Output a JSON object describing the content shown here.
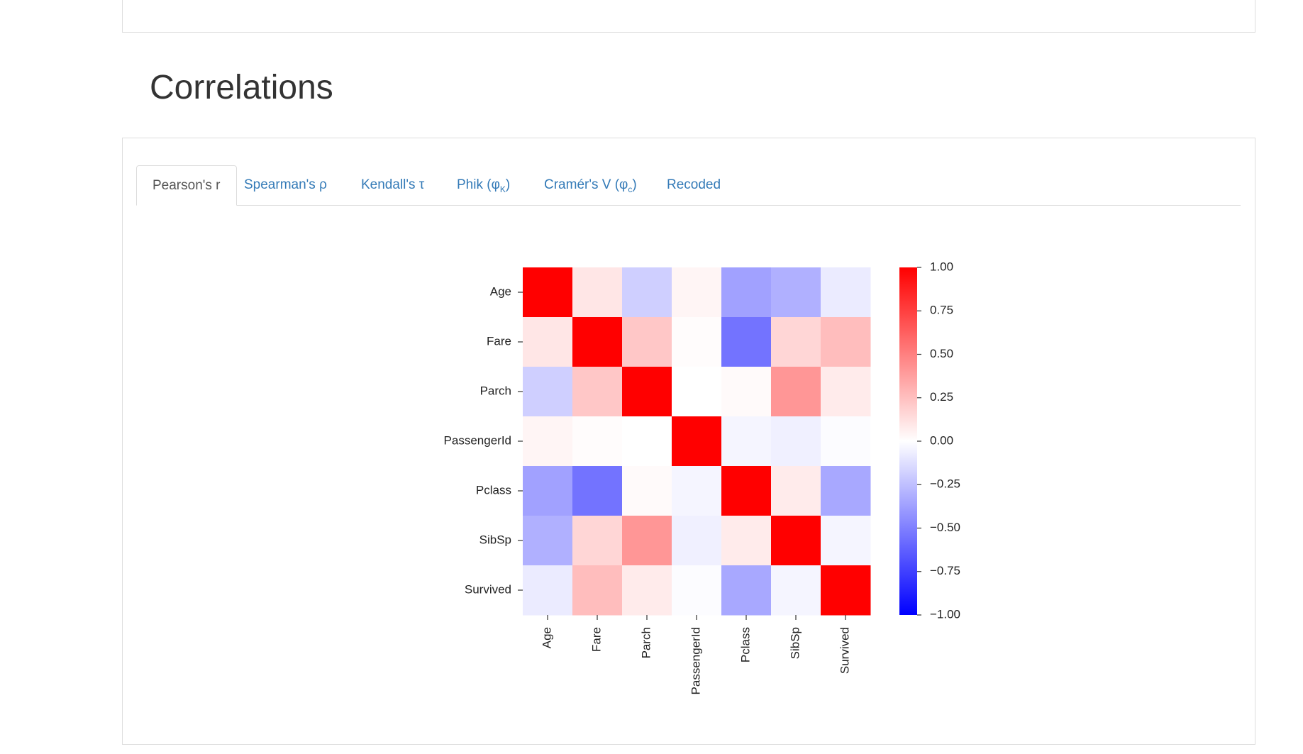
{
  "section_title": "Correlations",
  "tabs": [
    {
      "label": "Pearson's r"
    },
    {
      "label": "Spearman's ρ"
    },
    {
      "label": "Kendall's τ"
    },
    {
      "label": "Phik (φ",
      "sub": "K",
      "end": ")"
    },
    {
      "label": "Cramér's V (φ",
      "sub": "c",
      "end": ")"
    },
    {
      "label": "Recoded"
    }
  ],
  "chart_data": {
    "type": "heatmap",
    "categories": [
      "Age",
      "Fare",
      "Parch",
      "PassengerId",
      "Pclass",
      "SibSp",
      "Survived"
    ],
    "values": [
      [
        1,
        0.1,
        -0.19,
        0.04,
        -0.37,
        -0.31,
        -0.08
      ],
      [
        0.1,
        1,
        0.22,
        0.01,
        -0.55,
        0.16,
        0.26
      ],
      [
        -0.19,
        0.22,
        1,
        0,
        0.02,
        0.41,
        0.08
      ],
      [
        0.04,
        0.01,
        0,
        1,
        -0.04,
        -0.06,
        -0.01
      ],
      [
        -0.37,
        -0.55,
        0.02,
        -0.04,
        1,
        0.08,
        -0.34
      ],
      [
        -0.31,
        0.16,
        0.41,
        -0.06,
        0.08,
        1,
        -0.04
      ],
      [
        -0.08,
        0.26,
        0.08,
        -0.01,
        -0.34,
        -0.04,
        1
      ]
    ],
    "colors": {
      "min": "#0000ff",
      "mid": "#ffffff",
      "max": "#ff0000"
    },
    "zlim": [
      -1,
      1
    ],
    "zticks": [
      {
        "value": 1,
        "label": "1.00"
      },
      {
        "value": 0.75,
        "label": "0.75"
      },
      {
        "value": 0.5,
        "label": "0.50"
      },
      {
        "value": 0.25,
        "label": "0.25"
      },
      {
        "value": 0,
        "label": "0.00"
      },
      {
        "value": -0.25,
        "label": "−0.25"
      },
      {
        "value": -0.5,
        "label": "−0.50"
      },
      {
        "value": -0.75,
        "label": "−0.75"
      },
      {
        "value": -1,
        "label": "−1.00"
      }
    ]
  }
}
